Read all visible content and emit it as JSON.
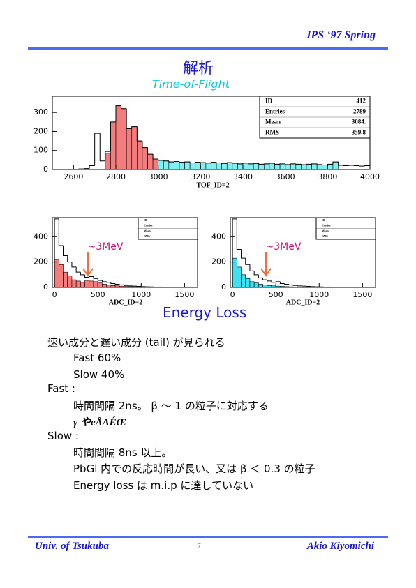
{
  "header": {
    "text": "JPS ‘97 Spring"
  },
  "title": "解析",
  "tof_heading": "Time-of-Flight",
  "chart_data": [
    {
      "type": "histogram",
      "xlabel": "TOF_ID=2",
      "xlim": [
        2500,
        4000
      ],
      "ylim": [
        0,
        385
      ],
      "xticks": [
        2600,
        2800,
        3000,
        3200,
        3400,
        3600,
        3800,
        4000
      ],
      "yticks": [
        0,
        100,
        200,
        300
      ],
      "stats": [
        {
          "label": "ID",
          "value": "412"
        },
        {
          "label": "Entries",
          "value": "2789"
        },
        {
          "label": "Mean",
          "value": "3084."
        },
        {
          "label": "RMS",
          "value": "359.8"
        }
      ],
      "series": [
        {
          "color": "#f47c7c",
          "filled": true,
          "bins": [
            2750,
            2775,
            2800,
            2825,
            2850,
            2875,
            2900,
            2925,
            2950,
            2975,
            3000
          ],
          "values": [
            85,
            250,
            335,
            320,
            215,
            225,
            150,
            115,
            80,
            55
          ]
        },
        {
          "color": "#80f0f0",
          "filled": true,
          "bins": [
            3000,
            3025,
            3050,
            3075,
            3100,
            3125,
            3150,
            3175,
            3200,
            3225,
            3250,
            3275,
            3300,
            3325,
            3350,
            3375,
            3400,
            3425,
            3450,
            3475,
            3500,
            3525,
            3550,
            3575,
            3600,
            3625,
            3650,
            3675,
            3700,
            3725,
            3750,
            3775,
            3800,
            3825,
            3850
          ],
          "values": [
            48,
            45,
            40,
            42,
            38,
            40,
            35,
            38,
            36,
            34,
            38,
            35,
            32,
            36,
            33,
            30,
            34,
            30,
            32,
            28,
            30,
            33,
            28,
            30,
            26,
            30,
            28,
            25,
            28,
            30,
            26,
            24,
            28,
            40
          ]
        },
        {
          "color": "#000000",
          "filled": false,
          "bins": [
            2600,
            2625,
            2650,
            2675,
            2700,
            2725,
            2750,
            2775,
            2800,
            2825,
            2850,
            2875,
            2900,
            2925,
            2950,
            2975,
            3000,
            3025,
            3050,
            3075,
            3100,
            3125,
            3150,
            3175,
            3200,
            3225,
            3250,
            3275,
            3300,
            3325,
            3350,
            3375,
            3400,
            3425,
            3450,
            3475,
            3500,
            3525,
            3550,
            3575,
            3600,
            3625,
            3650,
            3675,
            3700,
            3725,
            3750,
            3775,
            3800,
            3825,
            3850,
            3875,
            3900,
            3925,
            3950,
            3975,
            4000
          ],
          "values": [
            0,
            3,
            5,
            20,
            190,
            45,
            95,
            250,
            335,
            320,
            215,
            225,
            150,
            115,
            80,
            55,
            48,
            45,
            40,
            42,
            38,
            40,
            35,
            38,
            36,
            34,
            38,
            35,
            32,
            36,
            33,
            30,
            34,
            30,
            32,
            28,
            30,
            33,
            28,
            30,
            26,
            30,
            28,
            25,
            28,
            30,
            26,
            24,
            28,
            40,
            22,
            20,
            22,
            20,
            18,
            20
          ]
        }
      ]
    },
    {
      "type": "histogram",
      "xlabel": "ADC_ID=2",
      "annotation": "~3MeV",
      "xlim": [
        -25,
        1650
      ],
      "ylim": [
        0,
        550
      ],
      "xticks": [
        0,
        500,
        1000,
        1500
      ],
      "yticks": [
        0,
        200,
        400
      ],
      "stats": [
        {
          "label": "ID"
        },
        {
          "label": "Entries"
        },
        {
          "label": "Mean"
        },
        {
          "label": "RMS"
        }
      ],
      "series": [
        {
          "color": "#f47c7c",
          "filled": true,
          "bins": [
            0,
            50,
            100,
            150,
            200,
            250,
            300,
            350,
            400,
            450,
            500,
            550,
            600,
            650,
            700,
            750,
            800,
            850,
            900,
            950,
            1000
          ],
          "values": [
            220,
            180,
            120,
            90,
            60,
            50,
            40,
            55,
            50,
            45,
            35,
            25,
            20,
            15,
            12,
            10,
            8,
            6,
            5,
            4
          ]
        },
        {
          "color": "#000000",
          "filled": false,
          "bins": [
            0,
            50,
            100,
            150,
            200,
            250,
            300,
            350,
            400,
            450,
            500,
            550,
            600,
            650,
            700,
            750,
            800,
            850,
            900,
            950,
            1000,
            1050,
            1100,
            1150,
            1200,
            1250,
            1300,
            1350,
            1400,
            1450,
            1500,
            1550,
            1600
          ],
          "values": [
            540,
            330,
            250,
            200,
            160,
            120,
            100,
            80,
            85,
            70,
            55,
            45,
            40,
            30,
            25,
            20,
            15,
            12,
            10,
            8,
            6,
            5,
            4,
            3,
            3,
            2,
            2,
            1,
            1,
            1,
            0,
            0
          ]
        }
      ]
    },
    {
      "type": "histogram",
      "xlabel": "ADC_ID=2",
      "annotation": "~3MeV",
      "xlim": [
        -25,
        1650
      ],
      "ylim": [
        0,
        550
      ],
      "xticks": [
        0,
        500,
        1000,
        1500
      ],
      "yticks": [
        0,
        200,
        400
      ],
      "stats": [
        {
          "label": "ID"
        },
        {
          "label": "Entries"
        },
        {
          "label": "Mean"
        },
        {
          "label": "RMS"
        }
      ],
      "series": [
        {
          "color": "#40e0f0",
          "filled": true,
          "bins": [
            0,
            50,
            100,
            150,
            200,
            250,
            300,
            350,
            400,
            450,
            500,
            550,
            600,
            650,
            700,
            750,
            800,
            850,
            900,
            950,
            1000
          ],
          "values": [
            230,
            160,
            100,
            70,
            45,
            35,
            25,
            20,
            15,
            12,
            10,
            8,
            6,
            5,
            4,
            3,
            2,
            1,
            1,
            0
          ]
        },
        {
          "color": "#000000",
          "filled": false,
          "bins": [
            0,
            50,
            100,
            150,
            200,
            250,
            300,
            350,
            400,
            450,
            500,
            550,
            600,
            650,
            700,
            750,
            800,
            850,
            900,
            950,
            1000,
            1050,
            1100,
            1150,
            1200,
            1250,
            1300,
            1350,
            1400,
            1450,
            1500,
            1550,
            1600
          ],
          "values": [
            540,
            300,
            230,
            180,
            130,
            100,
            75,
            60,
            50,
            40,
            45,
            30,
            25,
            20,
            15,
            12,
            10,
            8,
            6,
            5,
            4,
            3,
            3,
            2,
            2,
            1,
            1,
            1,
            0,
            0,
            0,
            0
          ]
        }
      ]
    }
  ],
  "energy_heading": "Energy Loss",
  "body": [
    "速い成分と遅い成分 (tail) が見られる",
    "Fast  60%",
    "Slow 40%",
    "Fast :",
    "時間間隔 2ns。 β ～ 1 の粒子に対応する",
    "γ やeÅAÉŒ",
    "Slow :",
    "時間間隔 8ns 以上。",
    "PbGl 内での反応時間が長い、又は β ＜ 0.3 の粒子",
    "Energy loss は m.i.p に達していない"
  ],
  "footer": {
    "left": "Univ. of Tsukuba",
    "page": "7",
    "right": "Akio Kiyomichi"
  }
}
